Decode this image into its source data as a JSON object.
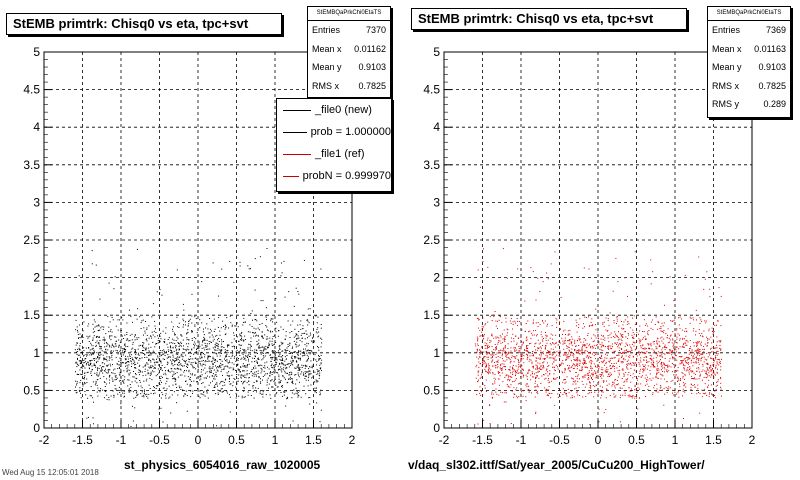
{
  "page": {
    "footer": "Wed Aug 15 12:05:01 2018"
  },
  "chart_data": [
    {
      "type": "scatter",
      "title": "StEMB primtrk: Chisq0 vs eta, tpc+svt",
      "xlabel": "st_physics_6054016_raw_1020005",
      "ylabel": "",
      "xlim": [
        -2,
        2
      ],
      "ylim": [
        0,
        5
      ],
      "x_ticks": [
        "-2",
        "-1.5",
        "-1",
        "-0.5",
        "0",
        "0.5",
        "1",
        "1.5",
        "2"
      ],
      "y_ticks": [
        "0",
        "0.5",
        "1",
        "1.5",
        "2",
        "2.5",
        "3",
        "3.5",
        "4",
        "4.5",
        "5"
      ],
      "grid": true,
      "marker_color": "#000000",
      "distribution": {
        "x_range": [
          -1.6,
          1.6
        ],
        "band_center": 0.92,
        "band_width": [
          0.4,
          1.5
        ],
        "sparse_max": 2.4,
        "points": 2400
      },
      "stats": {
        "header": "StEMBQaPrkChi0EtaTS",
        "rows": [
          {
            "label": "Entries",
            "value": "7370"
          },
          {
            "label": "Mean x",
            "value": "0.01162"
          },
          {
            "label": "Mean y",
            "value": "0.9103"
          },
          {
            "label": "RMS x",
            "value": "0.7825"
          }
        ]
      },
      "legend": [
        {
          "label": "_file0 (new)",
          "color": "#000000"
        },
        {
          "label": "prob = 1.000000",
          "color": "#000000"
        },
        {
          "label": "_file1 (ref)",
          "color": "#cc0000"
        },
        {
          "label": "probN = 0.999970",
          "color": "#cc0000"
        }
      ]
    },
    {
      "type": "scatter",
      "title": "StEMB primtrk: Chisq0 vs eta, tpc+svt",
      "xlabel": "v/daq_sl302.ittf/Sat/year_2005/CuCu200_HighTower/",
      "ylabel": "",
      "xlim": [
        -2,
        2
      ],
      "ylim": [
        0,
        5
      ],
      "x_ticks": [
        "-2",
        "-1.5",
        "-1",
        "-0.5",
        "0",
        "0.5",
        "1",
        "1.5",
        "2"
      ],
      "y_ticks": [
        "0",
        "0.5",
        "1",
        "1.5",
        "2",
        "2.5",
        "3",
        "3.5",
        "4",
        "4.5",
        "5"
      ],
      "grid": true,
      "marker_color": "#dd0000",
      "distribution": {
        "x_range": [
          -1.6,
          1.6
        ],
        "band_center": 0.92,
        "band_width": [
          0.4,
          1.5
        ],
        "sparse_max": 2.4,
        "points": 2400
      },
      "stats": {
        "header": "StEMBQaPrkChi0EtaTS",
        "rows": [
          {
            "label": "Entries",
            "value": "7369"
          },
          {
            "label": "Mean x",
            "value": "0.01163"
          },
          {
            "label": "Mean y",
            "value": "0.9103"
          },
          {
            "label": "RMS x",
            "value": "0.7825"
          },
          {
            "label": "RMS y",
            "value": "0.289"
          }
        ]
      }
    }
  ]
}
